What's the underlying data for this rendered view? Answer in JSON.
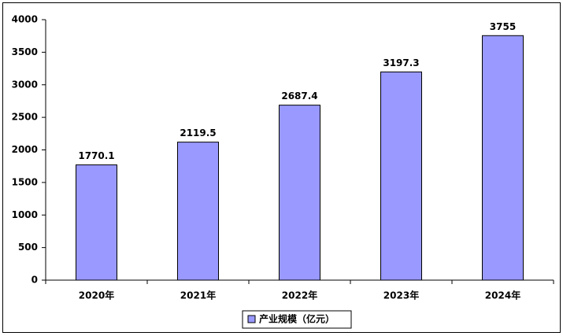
{
  "chart_data": {
    "type": "bar",
    "categories": [
      "2020年",
      "2021年",
      "2022年",
      "2023年",
      "2024年"
    ],
    "series": [
      {
        "name": "产业规模（亿元）",
        "color": "#9999ff",
        "values": [
          1770.1,
          2119.5,
          2687.4,
          3197.3,
          3755
        ]
      }
    ],
    "ylim": [
      0,
      4000
    ],
    "yticks": [
      0,
      500,
      1000,
      1500,
      2000,
      2500,
      3000,
      3500,
      4000
    ],
    "legend": "bottom"
  }
}
